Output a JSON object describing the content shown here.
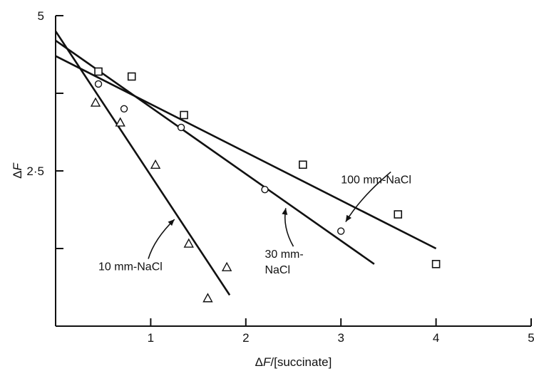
{
  "chart_data": {
    "type": "scatter",
    "xlabel_prefix": "ΔF",
    "xlabel_suffix": "/[succinate]",
    "ylabel": "ΔF",
    "xlim": [
      0,
      5
    ],
    "ylim": [
      0,
      5
    ],
    "x_ticks": [
      {
        "value": 1,
        "label": "1"
      },
      {
        "value": 2,
        "label": "2"
      },
      {
        "value": 3,
        "label": "3"
      },
      {
        "value": 4,
        "label": "4"
      },
      {
        "value": 5,
        "label": "5"
      }
    ],
    "y_ticks": [
      {
        "value": 5,
        "label": "5"
      },
      {
        "value": 2.5,
        "label": "2·5"
      }
    ],
    "y_minor_ticks": [
      3.75,
      1.25
    ],
    "grid": false,
    "series": [
      {
        "name": "10 mm-NaCl",
        "marker": "triangle",
        "points": [
          [
            0.42,
            3.6
          ],
          [
            0.68,
            3.28
          ],
          [
            1.05,
            2.6
          ],
          [
            1.4,
            1.33
          ],
          [
            1.8,
            0.95
          ],
          [
            1.6,
            0.45
          ]
        ],
        "line": [
          [
            0,
            4.75
          ],
          [
            1.83,
            0.5
          ]
        ]
      },
      {
        "name": "30 mm-NaCl",
        "marker": "circle",
        "points": [
          [
            0.45,
            3.9
          ],
          [
            0.72,
            3.5
          ],
          [
            1.32,
            3.2
          ],
          [
            2.2,
            2.2
          ],
          [
            3.0,
            1.53
          ]
        ],
        "line": [
          [
            0,
            4.6
          ],
          [
            3.35,
            1.0
          ]
        ]
      },
      {
        "name": "100 mm-NaCl",
        "marker": "square",
        "points": [
          [
            0.45,
            4.1
          ],
          [
            0.8,
            4.02
          ],
          [
            1.35,
            3.4
          ],
          [
            2.6,
            2.6
          ],
          [
            3.6,
            1.8
          ],
          [
            4.0,
            1.0
          ]
        ],
        "line": [
          [
            0,
            4.35
          ],
          [
            4.0,
            1.25
          ]
        ]
      }
    ],
    "annotations": [
      {
        "label": "10 mm-NaCl",
        "lines": [
          "10 mm-NaCl"
        ],
        "x": 0.45,
        "y": 0.9,
        "arrow_to": [
          1.25,
          1.72
        ]
      },
      {
        "label": "30 mm-NaCl",
        "lines": [
          "30 mm-",
          "NaCl"
        ],
        "x": 2.2,
        "y": 1.1,
        "arrow_to": [
          2.42,
          1.9
        ]
      },
      {
        "label": "100 mm-NaCl",
        "lines": [
          "100 mm-NaCl"
        ],
        "x": 3.0,
        "y": 2.3,
        "arrow_to": [
          3.05,
          1.68
        ]
      }
    ]
  }
}
